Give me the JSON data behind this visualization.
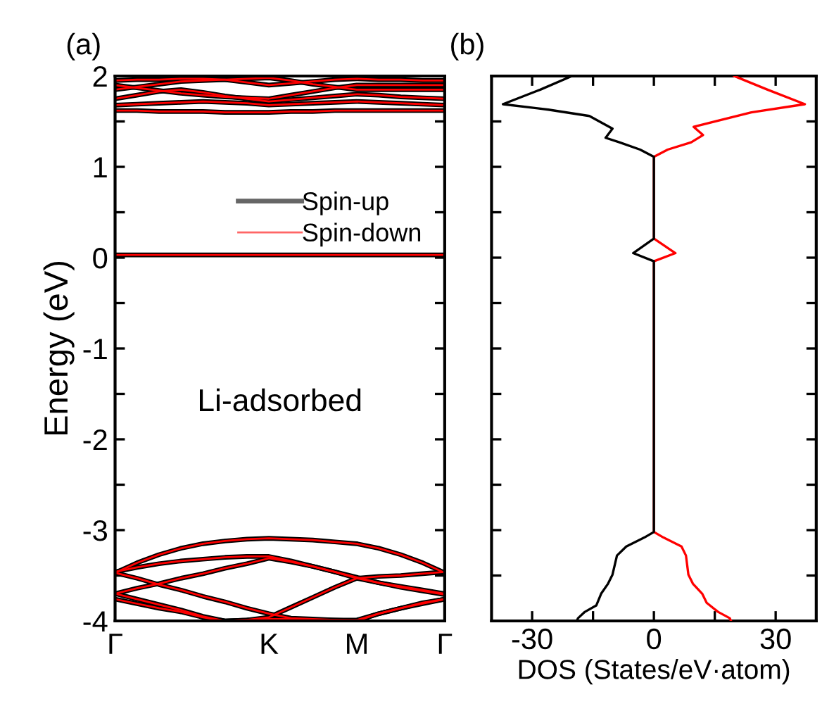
{
  "chart_data": [
    {
      "type": "line",
      "title": "(a)",
      "ylabel": "Energy (eV)",
      "annotations": [
        "Li-adsorbed"
      ],
      "legend": "top right",
      "categories": [
        "Γ",
        null,
        null,
        null,
        null,
        null,
        null,
        "K",
        null,
        null,
        null,
        "M",
        null,
        null,
        null,
        "Γ"
      ],
      "ylim": [
        -4,
        2
      ],
      "yticks": [
        -4,
        {
          "value": -3.5,
          "label": null
        },
        -3,
        {
          "value": -2.5,
          "label": null
        },
        -2,
        {
          "value": -1.5,
          "label": null
        },
        -1,
        {
          "value": -0.5,
          "label": null
        },
        0,
        {
          "value": 0.5,
          "label": null
        },
        1,
        {
          "value": 1.5,
          "label": null
        },
        2
      ],
      "series": [
        {
          "name": "Spin-up",
          "color": "#000000",
          "values": [
            0.03,
            0.03,
            0.03,
            0.03,
            0.03,
            0.03,
            0.03,
            0.03,
            0.03,
            0.03,
            0.03,
            0.03,
            0.03,
            0.03,
            0.03,
            0.03
          ]
        },
        {
          "color": "#000000",
          "values": [
            -3.47,
            -3.36,
            -3.27,
            -3.2,
            -3.15,
            -3.12,
            -3.1,
            -3.09,
            -3.1,
            -3.11,
            -3.13,
            -3.15,
            -3.2,
            -3.27,
            -3.36,
            -3.47
          ]
        },
        {
          "color": "#000000",
          "values": [
            -3.46,
            -3.41,
            -3.37,
            -3.34,
            -3.32,
            -3.3,
            -3.29,
            -3.29,
            -3.34,
            -3.4,
            -3.46,
            -3.52,
            -3.58,
            -3.62,
            -3.66,
            -3.7
          ]
        },
        {
          "color": "#000000",
          "values": [
            -3.7,
            -3.64,
            -3.59,
            -3.53,
            -3.48,
            -3.42,
            -3.37,
            -3.31,
            -3.35,
            -3.4,
            -3.46,
            -3.53,
            -3.51,
            -3.5,
            -3.48,
            -3.46
          ]
        },
        {
          "color": "#000000",
          "values": [
            -3.47,
            -3.53,
            -3.6,
            -3.66,
            -3.73,
            -3.79,
            -3.86,
            -3.92,
            -3.97,
            -3.98,
            -3.99,
            -4.0,
            -3.92,
            -3.86,
            -3.8,
            -3.76
          ]
        },
        {
          "color": "#000000",
          "values": [
            -3.7,
            -3.76,
            -3.82,
            -3.88,
            -3.95,
            -4.0,
            -3.99,
            -3.96,
            -3.85,
            -3.74,
            -3.63,
            -3.53,
            -3.58,
            -3.63,
            -3.67,
            -3.71
          ]
        },
        {
          "color": "#000000",
          "values": [
            -3.76,
            -3.81,
            -3.86,
            -3.9,
            -3.96,
            -4.0,
            -3.99,
            -3.98,
            -3.98,
            -3.99,
            -3.99,
            -3.99,
            -3.92,
            -3.86,
            -3.81,
            -3.76
          ]
        },
        {
          "color": "#000000",
          "values": [
            1.62,
            1.62,
            1.61,
            1.61,
            1.61,
            1.6,
            1.6,
            1.6,
            1.61,
            1.61,
            1.62,
            1.62,
            1.62,
            1.62,
            1.62,
            1.62
          ]
        },
        {
          "color": "#000000",
          "values": [
            1.68,
            1.69,
            1.7,
            1.71,
            1.72,
            1.71,
            1.7,
            1.68,
            1.69,
            1.7,
            1.71,
            1.72,
            1.71,
            1.7,
            1.69,
            1.68
          ]
        },
        {
          "color": "#000000",
          "values": [
            1.75,
            1.79,
            1.83,
            1.85,
            1.82,
            1.78,
            1.75,
            1.72,
            1.74,
            1.76,
            1.78,
            1.8,
            1.79,
            1.77,
            1.76,
            1.75
          ]
        },
        {
          "color": "#000000",
          "values": [
            1.9,
            1.87,
            1.84,
            1.81,
            1.79,
            1.77,
            1.76,
            1.75,
            1.79,
            1.83,
            1.87,
            1.9,
            1.9,
            1.9,
            1.9,
            1.9
          ]
        },
        {
          "color": "#000000",
          "values": [
            1.95,
            1.96,
            1.96,
            1.97,
            1.97,
            1.96,
            1.93,
            1.9,
            1.92,
            1.94,
            1.96,
            1.97,
            1.96,
            1.96,
            1.95,
            1.95
          ]
        },
        {
          "color": "#000000",
          "values": [
            1.85,
            1.88,
            1.91,
            1.94,
            1.95,
            1.96,
            1.97,
            1.98,
            1.95,
            1.91,
            1.88,
            1.85,
            1.85,
            1.85,
            1.85,
            1.85
          ]
        },
        {
          "name": "Spin-down",
          "color": "#ff0000",
          "values": [
            0.03,
            0.03,
            0.03,
            0.03,
            0.03,
            0.03,
            0.03,
            0.03,
            0.03,
            0.03,
            0.03,
            0.03,
            0.03,
            0.03,
            0.03,
            0.03
          ]
        },
        {
          "color": "#ff0000",
          "values": [
            -3.47,
            -3.36,
            -3.27,
            -3.2,
            -3.15,
            -3.12,
            -3.1,
            -3.09,
            -3.1,
            -3.11,
            -3.13,
            -3.15,
            -3.2,
            -3.27,
            -3.36,
            -3.47
          ]
        },
        {
          "color": "#ff0000",
          "values": [
            -3.46,
            -3.41,
            -3.37,
            -3.34,
            -3.32,
            -3.3,
            -3.29,
            -3.29,
            -3.34,
            -3.4,
            -3.46,
            -3.52,
            -3.58,
            -3.62,
            -3.66,
            -3.7
          ]
        },
        {
          "color": "#ff0000",
          "values": [
            -3.7,
            -3.64,
            -3.59,
            -3.53,
            -3.48,
            -3.42,
            -3.37,
            -3.31,
            -3.35,
            -3.4,
            -3.46,
            -3.53,
            -3.51,
            -3.5,
            -3.48,
            -3.46
          ]
        },
        {
          "color": "#ff0000",
          "values": [
            -3.47,
            -3.53,
            -3.6,
            -3.66,
            -3.73,
            -3.79,
            -3.86,
            -3.92,
            -3.97,
            -3.98,
            -3.99,
            -4.0,
            -3.92,
            -3.86,
            -3.8,
            -3.76
          ]
        },
        {
          "color": "#ff0000",
          "values": [
            -3.7,
            -3.76,
            -3.82,
            -3.88,
            -3.95,
            -4.0,
            -3.99,
            -3.96,
            -3.85,
            -3.74,
            -3.63,
            -3.53,
            -3.58,
            -3.63,
            -3.67,
            -3.71
          ]
        },
        {
          "color": "#ff0000",
          "values": [
            -3.76,
            -3.81,
            -3.86,
            -3.9,
            -3.96,
            -4.0,
            -3.99,
            -3.98,
            -3.98,
            -3.99,
            -3.99,
            -3.99,
            -3.92,
            -3.86,
            -3.81,
            -3.76
          ]
        },
        {
          "color": "#ff0000",
          "values": [
            1.62,
            1.62,
            1.61,
            1.61,
            1.61,
            1.6,
            1.6,
            1.6,
            1.61,
            1.61,
            1.62,
            1.62,
            1.62,
            1.62,
            1.62,
            1.62
          ]
        },
        {
          "color": "#ff0000",
          "values": [
            1.68,
            1.69,
            1.7,
            1.71,
            1.72,
            1.71,
            1.7,
            1.68,
            1.69,
            1.7,
            1.71,
            1.72,
            1.71,
            1.7,
            1.69,
            1.68
          ]
        },
        {
          "color": "#ff0000",
          "values": [
            1.75,
            1.79,
            1.83,
            1.85,
            1.82,
            1.78,
            1.75,
            1.72,
            1.74,
            1.76,
            1.78,
            1.8,
            1.79,
            1.77,
            1.76,
            1.75
          ]
        },
        {
          "color": "#ff0000",
          "values": [
            1.9,
            1.87,
            1.84,
            1.81,
            1.79,
            1.77,
            1.76,
            1.75,
            1.79,
            1.83,
            1.87,
            1.9,
            1.9,
            1.9,
            1.9,
            1.9
          ]
        },
        {
          "color": "#ff0000",
          "values": [
            1.95,
            1.96,
            1.96,
            1.97,
            1.97,
            1.96,
            1.93,
            1.9,
            1.92,
            1.94,
            1.96,
            1.97,
            1.96,
            1.96,
            1.95,
            1.95
          ]
        },
        {
          "color": "#ff0000",
          "values": [
            1.85,
            1.88,
            1.91,
            1.94,
            1.95,
            1.96,
            1.97,
            1.98,
            1.95,
            1.91,
            1.88,
            1.85,
            1.85,
            1.85,
            1.85,
            1.85
          ]
        }
      ]
    },
    {
      "type": "line",
      "title": "(b)",
      "xlabel": "DOS (States/eV·atom)",
      "tick_labels": "x",
      "xlim": [
        -40,
        40
      ],
      "xticks": [
        -30,
        {
          "value": -15,
          "label": null
        },
        0,
        {
          "value": 15,
          "label": null
        },
        30
      ],
      "ylim": [
        -4,
        2
      ],
      "yticks": [
        -4,
        -3.5,
        -3,
        -2.5,
        -2,
        -1.5,
        -1,
        -0.5,
        0,
        0.5,
        1,
        1.5,
        2
      ],
      "series": [
        {
          "color": "#000000",
          "x": [
            -20.2,
            -28,
            -37.2,
            -26,
            -15.9,
            -10.2,
            -11.9,
            -8.5,
            -3.4,
            0,
            0,
            -5.1,
            0,
            0,
            -2.3,
            -6.8,
            -9.1,
            -10.2,
            -11.3,
            -13,
            -14.2,
            -17,
            -18.7,
            -19
          ],
          "values": [
            2.0,
            1.85,
            1.69,
            1.63,
            1.56,
            1.42,
            1.32,
            1.27,
            1.19,
            1.11,
            0.21,
            0.05,
            -0.04,
            -3.02,
            -3.08,
            -3.18,
            -3.28,
            -3.49,
            -3.59,
            -3.7,
            -3.83,
            -3.9,
            -3.97,
            -4.0
          ]
        },
        {
          "color": "#ff0000",
          "x": [
            19.8,
            28,
            37.2,
            24,
            9.8,
            12.1,
            9.2,
            3.4,
            0,
            0,
            5.3,
            0,
            0,
            2.3,
            6.8,
            7.9,
            8.5,
            9.6,
            11.9,
            13,
            15.8,
            18.7,
            19
          ],
          "values": [
            2.0,
            1.85,
            1.69,
            1.6,
            1.44,
            1.35,
            1.27,
            1.19,
            1.11,
            0.21,
            0.05,
            -0.04,
            -3.02,
            -3.08,
            -3.18,
            -3.28,
            -3.49,
            -3.59,
            -3.7,
            -3.8,
            -3.9,
            -3.97,
            -4.0
          ]
        }
      ]
    }
  ]
}
